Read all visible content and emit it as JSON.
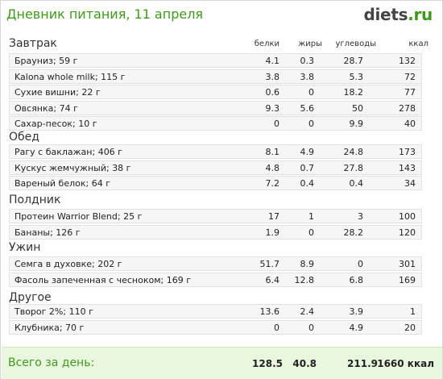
{
  "header": {
    "title": "Дневник питания, 11 апреля",
    "logo_main": "diets",
    "logo_suffix": ".ru"
  },
  "columns": {
    "protein": "белки",
    "fat": "жиры",
    "carbs": "углеводы",
    "kcal": "ккал"
  },
  "meals": [
    {
      "name": "Завтрак",
      "items": [
        {
          "food": "Брауниз; 59 г",
          "protein": "4.1",
          "fat": "0.3",
          "carbs": "28.7",
          "kcal": "132"
        },
        {
          "food": "Kalona whole milk; 115 г",
          "protein": "3.8",
          "fat": "3.8",
          "carbs": "5.3",
          "kcal": "72"
        },
        {
          "food": "Сухие вишни; 22 г",
          "protein": "0.6",
          "fat": "0",
          "carbs": "18.2",
          "kcal": "77"
        },
        {
          "food": "Овсянка; 74 г",
          "protein": "9.3",
          "fat": "5.6",
          "carbs": "50",
          "kcal": "278"
        },
        {
          "food": "Сахар-песок; 10 г",
          "protein": "0",
          "fat": "0",
          "carbs": "9.9",
          "kcal": "40"
        }
      ]
    },
    {
      "name": "Обед",
      "items": [
        {
          "food": "Рагу с баклажан; 406 г",
          "protein": "8.1",
          "fat": "4.9",
          "carbs": "24.8",
          "kcal": "173"
        },
        {
          "food": "Кускус жемчужный; 38 г",
          "protein": "4.8",
          "fat": "0.7",
          "carbs": "27.8",
          "kcal": "143"
        },
        {
          "food": "Вареный белок; 64 г",
          "protein": "7.2",
          "fat": "0.4",
          "carbs": "0.4",
          "kcal": "34"
        }
      ]
    },
    {
      "name": "Полдник",
      "items": [
        {
          "food": "Протеин Warrior Blend; 25 г",
          "protein": "17",
          "fat": "1",
          "carbs": "3",
          "kcal": "100"
        },
        {
          "food": "Бананы; 126 г",
          "protein": "1.9",
          "fat": "0",
          "carbs": "28.2",
          "kcal": "120"
        }
      ]
    },
    {
      "name": "Ужин",
      "items": [
        {
          "food": "Семга в духовке; 202 г",
          "protein": "51.7",
          "fat": "8.9",
          "carbs": "0",
          "kcal": "301"
        },
        {
          "food": "Фасоль запеченная с чесноком; 169 г",
          "protein": "6.4",
          "fat": "12.8",
          "carbs": "6.8",
          "kcal": "169"
        }
      ]
    },
    {
      "name": "Другое",
      "items": [
        {
          "food": "Творог 2%; 110 г",
          "protein": "13.6",
          "fat": "2.4",
          "carbs": "3.9",
          "kcal": "1"
        },
        {
          "food": "Клубника; 70 г",
          "protein": "0",
          "fat": "0",
          "carbs": "4.9",
          "kcal": "20"
        }
      ]
    }
  ],
  "total": {
    "label": "Всего за день:",
    "protein": "128.5",
    "fat": "40.8",
    "carbs": "211.9",
    "kcal": "1660 ккал"
  }
}
